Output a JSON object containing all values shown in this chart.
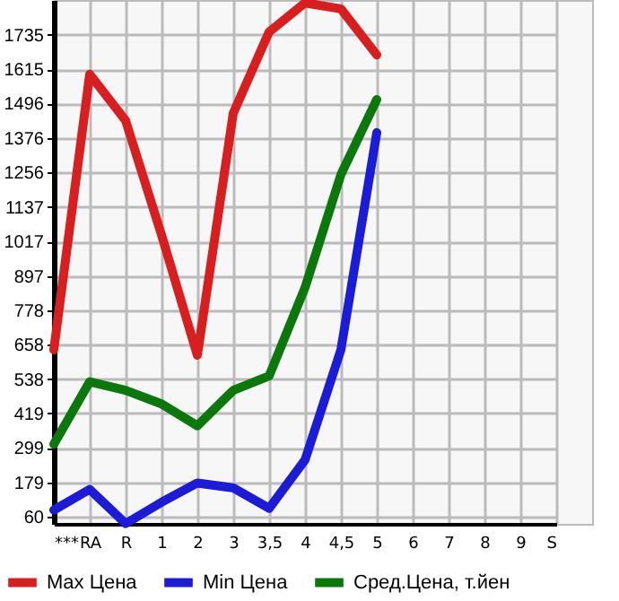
{
  "chart_data": {
    "type": "line",
    "categories": [
      "***",
      "RA",
      "R",
      "1",
      "2",
      "3",
      "3,5",
      "4",
      "4,5",
      "5",
      "6",
      "7",
      "8",
      "9",
      "S"
    ],
    "series": [
      {
        "name": "Max Цена",
        "color": "#d81e1e",
        "values": [
          640,
          1598,
          1437,
          1040,
          621,
          1462,
          1745,
          1846,
          1825,
          1665,
          null,
          null,
          null,
          null,
          null
        ]
      },
      {
        "name": "Min Цена",
        "color": "#1c1cd8",
        "values": [
          83,
          155,
          36,
          110,
          177,
          160,
          89,
          257,
          640,
          1395,
          null,
          null,
          null,
          null,
          null
        ]
      },
      {
        "name": "Сред.Цена, т.йен",
        "color": "#0a780a",
        "values": [
          312,
          529,
          499,
          452,
          376,
          499,
          549,
          856,
          1249,
          1510,
          null,
          null,
          null,
          null,
          null
        ]
      }
    ],
    "ylim": [
      35,
      1856
    ],
    "yticks": [
      60,
      179,
      299,
      419,
      538,
      658,
      778,
      897,
      1017,
      1137,
      1256,
      1376,
      1496,
      1615,
      1735
    ],
    "grid": true,
    "legend": "bottom",
    "line_style": "solid"
  }
}
